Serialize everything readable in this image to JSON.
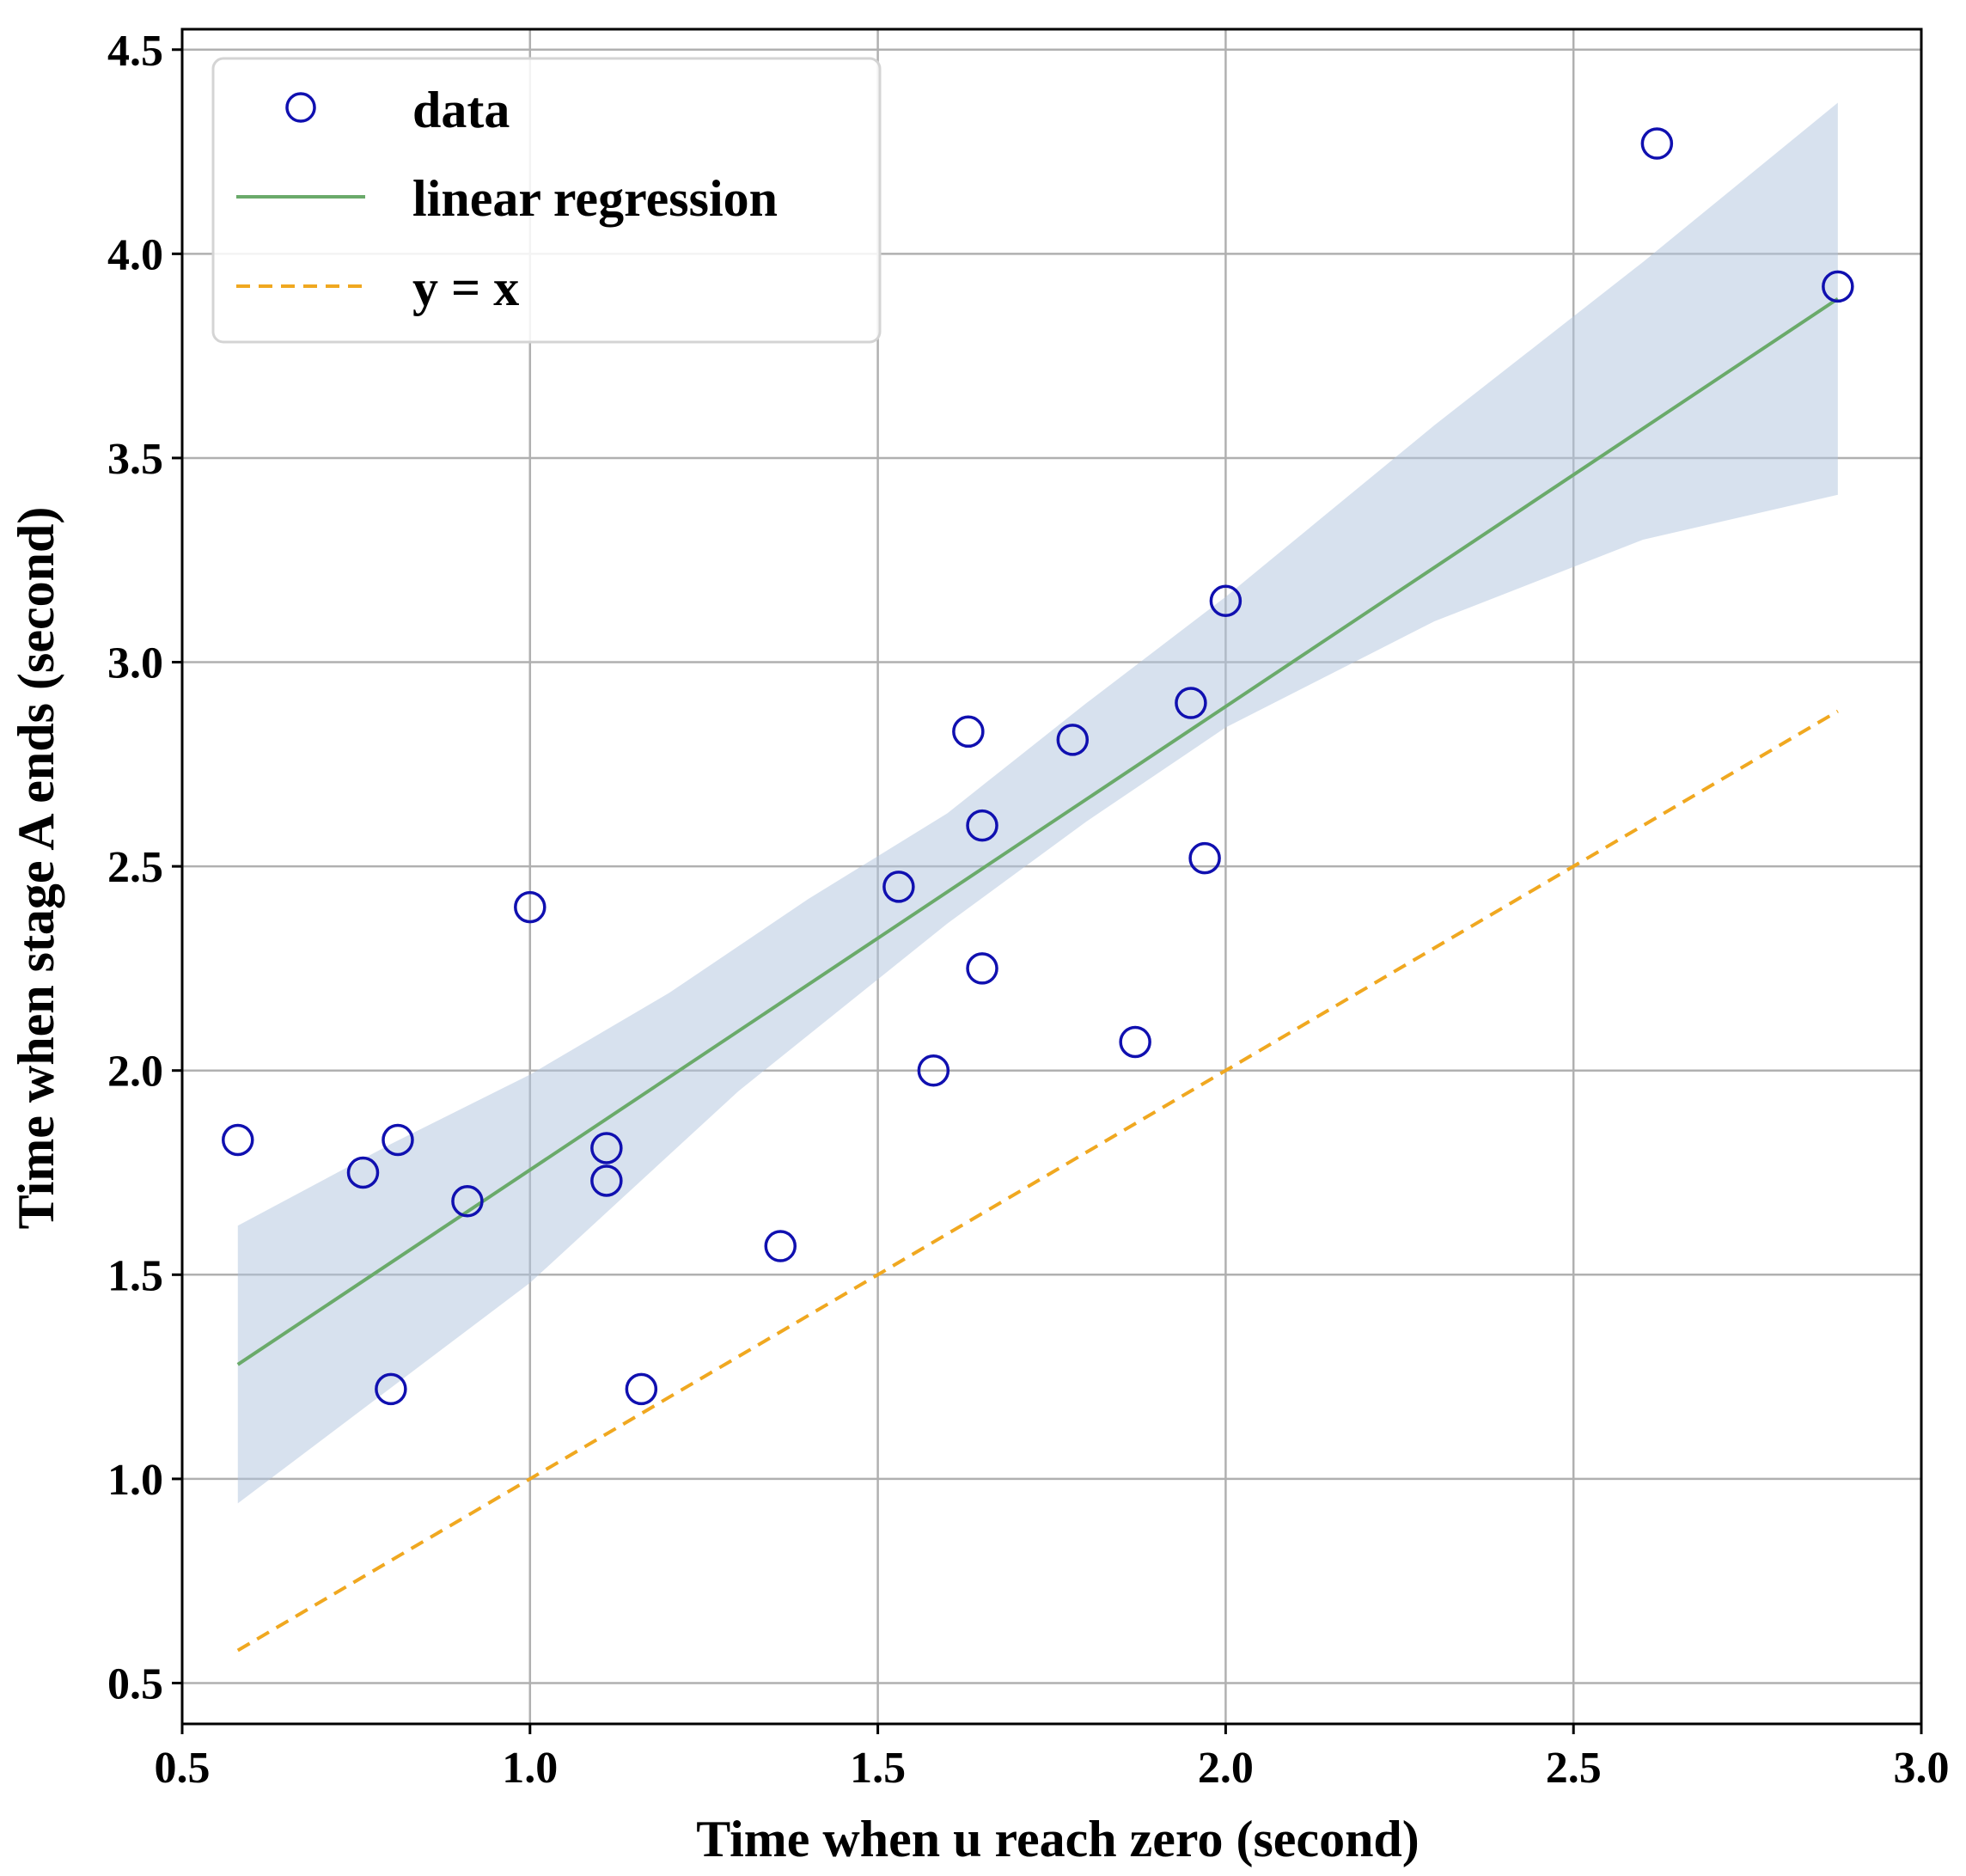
{
  "chart_data": {
    "type": "scatter",
    "xlabel": "Time when u reach zero (second)",
    "ylabel": "Time when stage A ends (second)",
    "xlim": [
      0.5,
      3.0
    ],
    "ylim": [
      0.4,
      4.55
    ],
    "xticks": [
      0.5,
      1.0,
      1.5,
      2.0,
      2.5,
      3.0
    ],
    "xtick_labels": [
      "0.5",
      "1.0",
      "1.5",
      "2.0",
      "2.5",
      "3.0"
    ],
    "yticks": [
      0.5,
      1.0,
      1.5,
      2.0,
      2.5,
      3.0,
      3.5,
      4.0,
      4.5
    ],
    "ytick_labels": [
      "0.5",
      "1.0",
      "1.5",
      "2.0",
      "2.5",
      "3.0",
      "3.5",
      "4.0",
      "4.5"
    ],
    "grid": true,
    "legend_position": "top-left",
    "legend": [
      {
        "label": "data",
        "kind": "marker"
      },
      {
        "label": "linear regression",
        "kind": "line"
      },
      {
        "label": "y = x",
        "kind": "dashed"
      }
    ],
    "series": [
      {
        "name": "data",
        "kind": "scatter",
        "color": "#1010b0",
        "points": [
          [
            0.58,
            1.83
          ],
          [
            0.76,
            1.75
          ],
          [
            0.8,
            1.22
          ],
          [
            0.81,
            1.83
          ],
          [
            0.91,
            1.68
          ],
          [
            1.0,
            2.4
          ],
          [
            1.11,
            1.81
          ],
          [
            1.11,
            1.73
          ],
          [
            1.16,
            1.22
          ],
          [
            1.36,
            1.57
          ],
          [
            1.53,
            2.45
          ],
          [
            1.58,
            2.0
          ],
          [
            1.63,
            2.83
          ],
          [
            1.65,
            2.6
          ],
          [
            1.65,
            2.25
          ],
          [
            1.78,
            2.81
          ],
          [
            1.87,
            2.07
          ],
          [
            1.95,
            2.9
          ],
          [
            1.97,
            2.52
          ],
          [
            2.0,
            3.15
          ],
          [
            2.62,
            4.27
          ],
          [
            2.88,
            3.92
          ]
        ]
      },
      {
        "name": "linear regression",
        "kind": "line",
        "color": "#6aaa6a",
        "points": [
          [
            0.58,
            1.28
          ],
          [
            2.88,
            3.89
          ]
        ]
      },
      {
        "name": "confidence band",
        "kind": "band",
        "color": "#b0c4de",
        "lower": [
          [
            0.58,
            0.94
          ],
          [
            1.0,
            1.48
          ],
          [
            1.3,
            1.95
          ],
          [
            1.6,
            2.36
          ],
          [
            1.8,
            2.61
          ],
          [
            2.0,
            2.84
          ],
          [
            2.3,
            3.1
          ],
          [
            2.6,
            3.3
          ],
          [
            2.88,
            3.41
          ]
        ],
        "upper": [
          [
            0.58,
            1.62
          ],
          [
            0.8,
            1.82
          ],
          [
            1.0,
            1.99
          ],
          [
            1.2,
            2.19
          ],
          [
            1.4,
            2.42
          ],
          [
            1.6,
            2.63
          ],
          [
            1.8,
            2.9
          ],
          [
            2.0,
            3.16
          ],
          [
            2.3,
            3.58
          ],
          [
            2.6,
            3.98
          ],
          [
            2.88,
            4.37
          ]
        ]
      },
      {
        "name": "y = x",
        "kind": "dashed",
        "color": "#f0a820",
        "points": [
          [
            0.58,
            0.58
          ],
          [
            2.88,
            2.88
          ]
        ]
      }
    ]
  }
}
